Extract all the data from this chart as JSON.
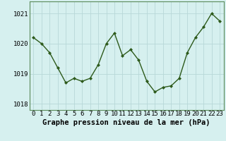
{
  "x": [
    0,
    1,
    2,
    3,
    4,
    5,
    6,
    7,
    8,
    9,
    10,
    11,
    12,
    13,
    14,
    15,
    16,
    17,
    18,
    19,
    20,
    21,
    22,
    23
  ],
  "y": [
    1020.2,
    1020.0,
    1019.7,
    1019.2,
    1018.7,
    1018.85,
    1018.75,
    1018.85,
    1019.3,
    1020.0,
    1020.35,
    1019.6,
    1019.8,
    1019.45,
    1018.75,
    1018.4,
    1018.55,
    1018.6,
    1018.85,
    1019.7,
    1020.2,
    1020.55,
    1021.0,
    1020.75
  ],
  "line_color": "#2d5a1b",
  "marker": "D",
  "marker_size": 2.0,
  "bg_color": "#d6f0ef",
  "grid_color": "#b8d8d8",
  "xlabel": "Graphe pression niveau de la mer (hPa)",
  "xlabel_fontsize": 7.5,
  "ylabel_ticks": [
    1018,
    1019,
    1020,
    1021
  ],
  "xlim": [
    -0.5,
    23.5
  ],
  "ylim": [
    1017.8,
    1021.4
  ],
  "tick_fontsize": 6.5,
  "line_width": 1.0
}
